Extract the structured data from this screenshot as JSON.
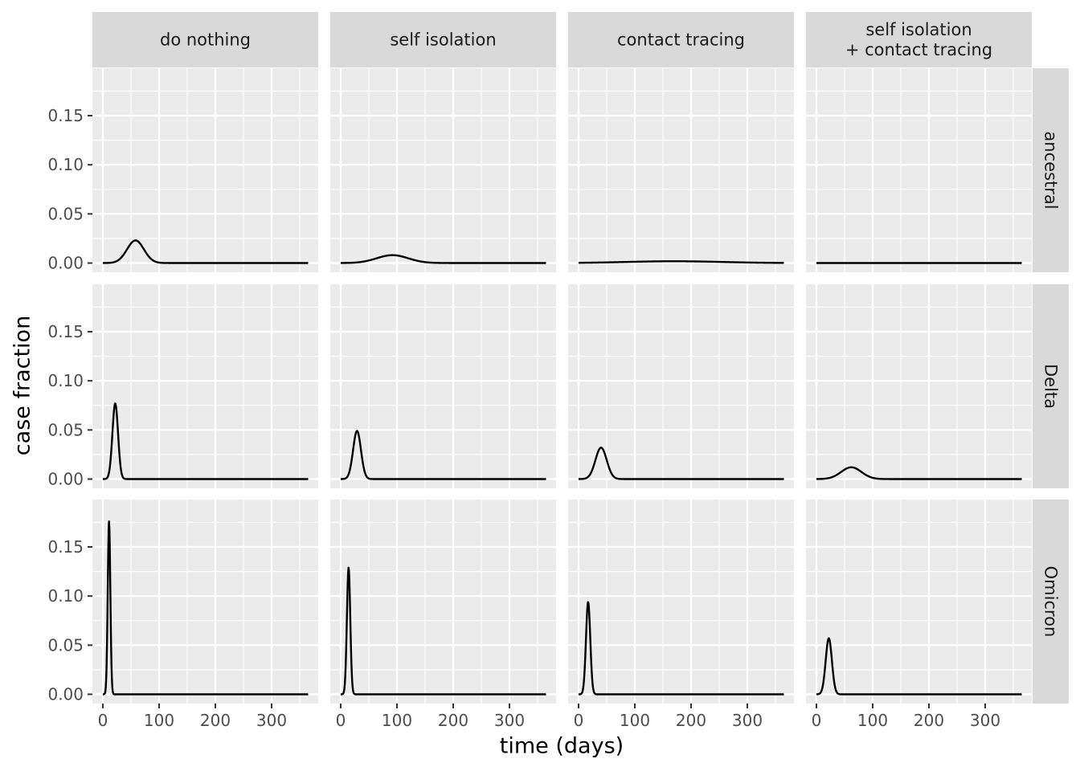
{
  "chart_data": {
    "type": "line",
    "layout": "facet_grid",
    "xlabel": "time (days)",
    "ylabel": "case fraction",
    "xlim": [
      0,
      365
    ],
    "ylim": [
      0,
      0.18
    ],
    "x_ticks": [
      0,
      100,
      200,
      300
    ],
    "y_ticks": [
      0.0,
      0.05,
      0.1,
      0.15
    ],
    "y_tick_labels": [
      "0.00",
      "0.05",
      "0.10",
      "0.15"
    ],
    "grid": true,
    "legend": "none",
    "columns": [
      "do nothing",
      "self isolation",
      "contact tracing",
      "self isolation\n+ contact tracing"
    ],
    "rows": [
      "ancestral",
      "Delta",
      "Omicron"
    ],
    "panels": [
      {
        "row": "ancestral",
        "column": "do nothing",
        "peak_day": 58,
        "peak_value": 0.023,
        "width_days": 15
      },
      {
        "row": "ancestral",
        "column": "self isolation",
        "peak_day": 92,
        "peak_value": 0.008,
        "width_days": 28
      },
      {
        "row": "ancestral",
        "column": "contact tracing",
        "peak_day": 170,
        "peak_value": 0.0018,
        "width_days": 85
      },
      {
        "row": "ancestral",
        "column": "self isolation\n+ contact tracing",
        "peak_day": 0,
        "peak_value": 0.0,
        "width_days": 1
      },
      {
        "row": "Delta",
        "column": "do nothing",
        "peak_day": 22,
        "peak_value": 0.077,
        "width_days": 5
      },
      {
        "row": "Delta",
        "column": "self isolation",
        "peak_day": 29,
        "peak_value": 0.049,
        "width_days": 7
      },
      {
        "row": "Delta",
        "column": "contact tracing",
        "peak_day": 40,
        "peak_value": 0.032,
        "width_days": 10
      },
      {
        "row": "Delta",
        "column": "self isolation\n+ contact tracing",
        "peak_day": 62,
        "peak_value": 0.012,
        "width_days": 18
      },
      {
        "row": "Omicron",
        "column": "do nothing",
        "peak_day": 11,
        "peak_value": 0.176,
        "width_days": 2.3
      },
      {
        "row": "Omicron",
        "column": "self isolation",
        "peak_day": 14,
        "peak_value": 0.129,
        "width_days": 3
      },
      {
        "row": "Omicron",
        "column": "contact tracing",
        "peak_day": 17,
        "peak_value": 0.094,
        "width_days": 3.8
      },
      {
        "row": "Omicron",
        "column": "self isolation\n+ contact tracing",
        "peak_day": 22,
        "peak_value": 0.057,
        "width_days": 5.5
      }
    ]
  }
}
